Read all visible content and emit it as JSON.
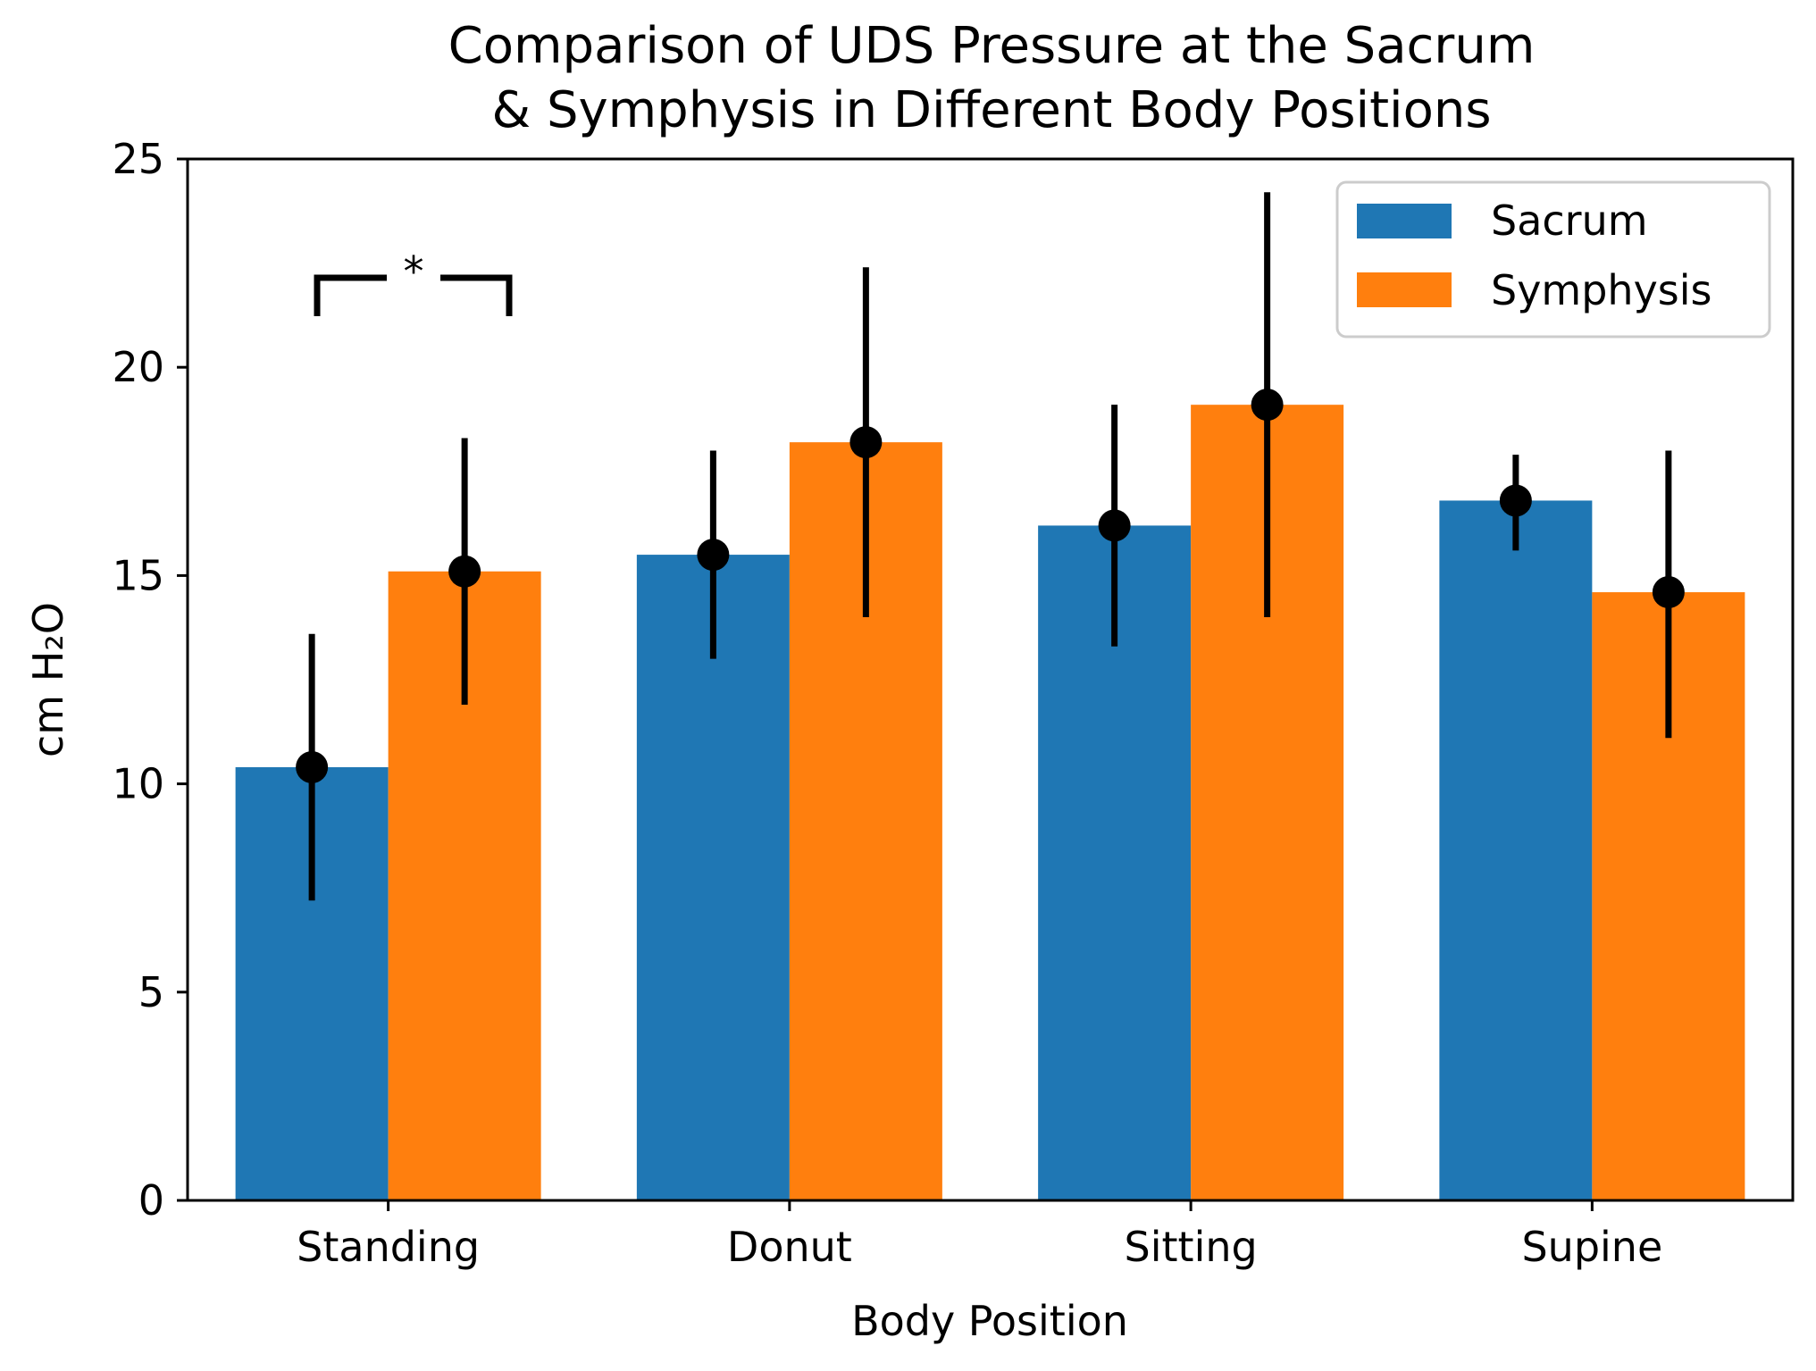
{
  "chart_data": {
    "type": "bar",
    "title_lines": [
      "Comparison of UDS Pressure at the Sacrum",
      "& Symphysis in Different Body Positions"
    ],
    "xlabel": "Body Position",
    "ylabel": "cm H₂O",
    "categories": [
      "Standing",
      "Donut",
      "Sitting",
      "Supine"
    ],
    "ylim": [
      0,
      25
    ],
    "yticks": [
      0,
      5,
      10,
      15,
      20,
      25
    ],
    "series": [
      {
        "name": "Sacrum",
        "color": "#1f77b4",
        "values": [
          10.4,
          15.5,
          16.2,
          16.8
        ],
        "err_low": [
          7.2,
          13.0,
          13.3,
          15.6
        ],
        "err_high": [
          13.6,
          18.0,
          19.1,
          17.9
        ]
      },
      {
        "name": "Symphysis",
        "color": "#ff7f0e",
        "values": [
          15.1,
          18.2,
          19.1,
          14.6
        ],
        "err_low": [
          11.9,
          14.0,
          14.0,
          11.1
        ],
        "err_high": [
          18.3,
          22.4,
          24.2,
          18.0
        ]
      }
    ],
    "legend_position": "top-right",
    "significance": {
      "category": "Standing",
      "label": "*"
    }
  }
}
